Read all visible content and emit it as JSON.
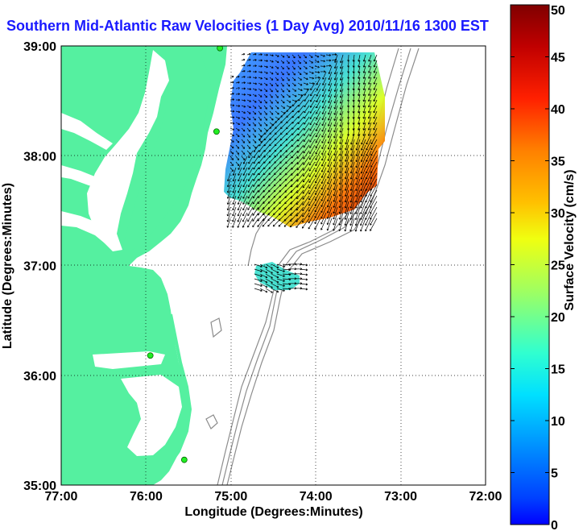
{
  "title": "Southern Mid-Atlantic Raw Velocities (1 Day Avg) 2010/11/16 1300 EST",
  "map": {
    "xlabel": "Longitude (Degrees:Minutes)",
    "ylabel": "Latitude (Degrees:Minutes)",
    "x_ticks": [
      "77:00",
      "76:00",
      "75:00",
      "74:00",
      "73:00",
      "72:00"
    ],
    "y_ticks": [
      "39:00",
      "38:00",
      "37:00",
      "36:00",
      "35:00"
    ],
    "lon_range": [
      -77,
      -72
    ],
    "lat_range": [
      35,
      39
    ],
    "land_color": "#55f0a0",
    "grid": "dotted"
  },
  "colorbar": {
    "label": "Surface Velocity (cm/s)",
    "ticks": [
      "0",
      "5",
      "10",
      "15",
      "20",
      "25",
      "30",
      "35",
      "40",
      "45",
      "50"
    ],
    "range": [
      0,
      50
    ],
    "colormap": "jet"
  },
  "stations": [
    {
      "lon": -75.13,
      "lat": 38.98
    },
    {
      "lon": -75.17,
      "lat": 38.22
    },
    {
      "lon": -75.95,
      "lat": 36.18
    },
    {
      "lon": -75.55,
      "lat": 35.23
    }
  ]
}
